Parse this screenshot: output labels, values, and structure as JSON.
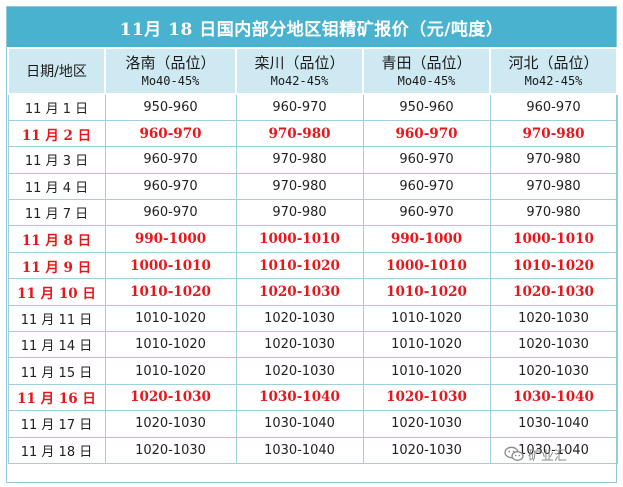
{
  "title": "11月 18 日国内部分地区钼精矿报价（元/吨度）",
  "header": {
    "date_label": "日期/地区",
    "columns": [
      {
        "region": "洛南（品位）",
        "grade": "Mo40-45%"
      },
      {
        "region": "栾川（品位）",
        "grade": "Mo42-45%"
      },
      {
        "region": "青田（品位）",
        "grade": "Mo40-45%"
      },
      {
        "region": "河北（品位）",
        "grade": "Mo42-45%"
      }
    ]
  },
  "rows": [
    {
      "date": "11 月 1 日",
      "highlight": false,
      "values": [
        "950-960",
        "960-970",
        "950-960",
        "960-970"
      ]
    },
    {
      "date": "11 月 2 日",
      "highlight": true,
      "values": [
        "960-970",
        "970-980",
        "960-970",
        "970-980"
      ]
    },
    {
      "date": "11 月 3 日",
      "highlight": false,
      "values": [
        "960-970",
        "970-980",
        "960-970",
        "970-980"
      ]
    },
    {
      "date": "11 月 4 日",
      "highlight": false,
      "values": [
        "960-970",
        "970-980",
        "960-970",
        "970-980"
      ]
    },
    {
      "date": "11 月 7 日",
      "highlight": false,
      "values": [
        "960-970",
        "970-980",
        "960-970",
        "970-980"
      ]
    },
    {
      "date": "11 月 8 日",
      "highlight": true,
      "values": [
        "990-1000",
        "1000-1010",
        "990-1000",
        "1000-1010"
      ]
    },
    {
      "date": "11 月 9 日",
      "highlight": true,
      "values": [
        "1000-1010",
        "1010-1020",
        "1000-1010",
        "1010-1020"
      ]
    },
    {
      "date": "11 月 10 日",
      "highlight": true,
      "values": [
        "1010-1020",
        "1020-1030",
        "1010-1020",
        "1020-1030"
      ]
    },
    {
      "date": "11 月 11 日",
      "highlight": false,
      "values": [
        "1010-1020",
        "1020-1030",
        "1010-1020",
        "1020-1030"
      ]
    },
    {
      "date": "11 月 14 日",
      "highlight": false,
      "values": [
        "1010-1020",
        "1020-1030",
        "1010-1020",
        "1020-1030"
      ]
    },
    {
      "date": "11 月 15 日",
      "highlight": false,
      "values": [
        "1010-1020",
        "1020-1030",
        "1010-1020",
        "1020-1030"
      ]
    },
    {
      "date": "11 月 16 日",
      "highlight": true,
      "values": [
        "1020-1030",
        "1030-1040",
        "1020-1030",
        "1030-1040"
      ]
    },
    {
      "date": "11 月 17 日",
      "highlight": false,
      "values": [
        "1020-1030",
        "1030-1040",
        "1020-1030",
        "1030-1040"
      ]
    },
    {
      "date": "11 月 18 日",
      "highlight": false,
      "values": [
        "1020-1030",
        "1030-1040",
        "1020-1030",
        "1030-1040"
      ]
    }
  ],
  "watermark": {
    "text": "矿业汇",
    "icon": "wechat-icon"
  },
  "colors": {
    "title_bg": "#49b3cf",
    "header_bg": "#cfe9f2",
    "highlight_text": "#e8161b",
    "border": "#9fcfdd"
  }
}
